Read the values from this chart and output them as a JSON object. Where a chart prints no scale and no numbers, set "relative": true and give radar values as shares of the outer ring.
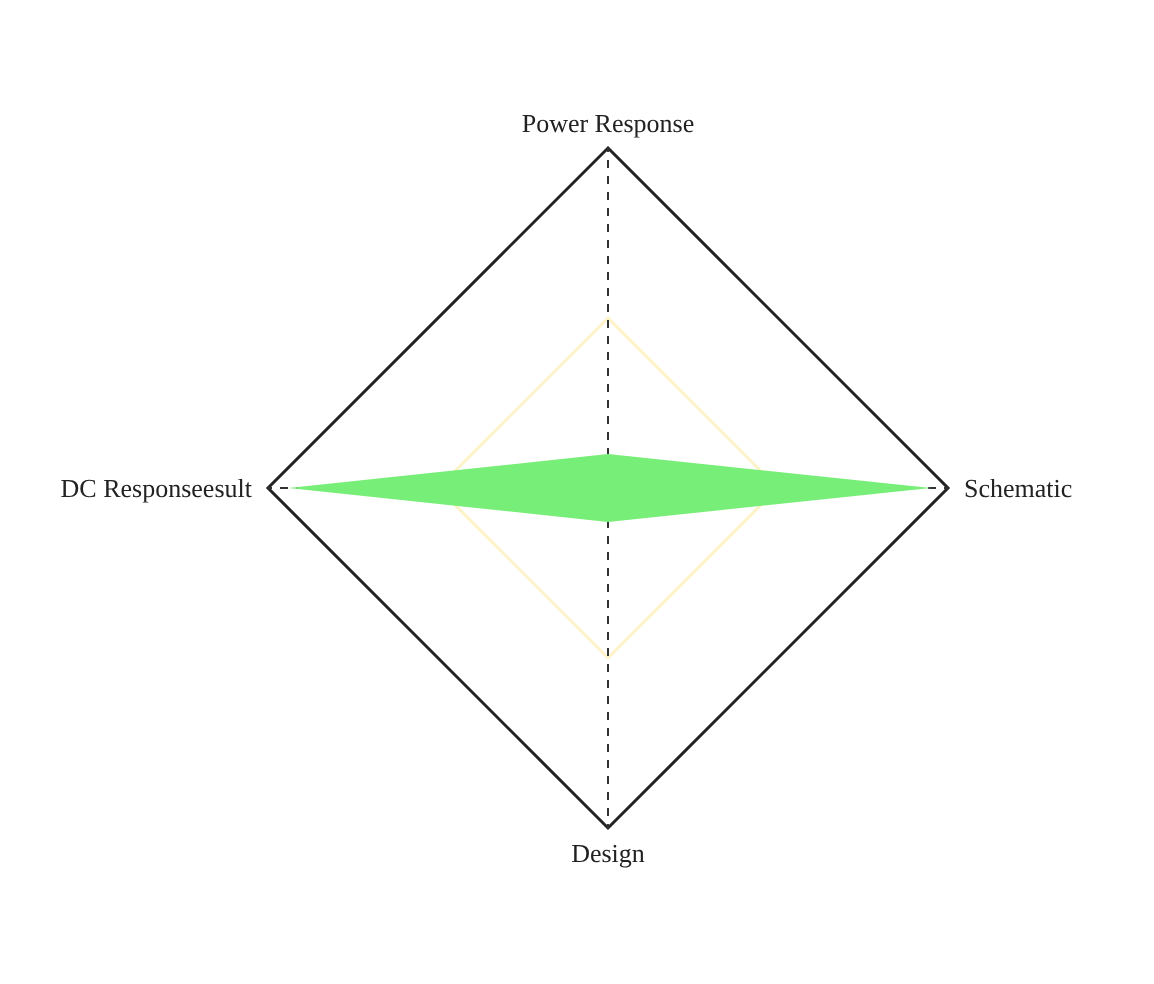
{
  "chart_data": {
    "type": "radar",
    "relative": true,
    "grid": true,
    "categories": [
      "Power Response",
      "Schematic",
      "Design",
      "DC Responseesult"
    ],
    "series": [
      {
        "color": "#77ee77",
        "values": [
          0.1,
          0.95,
          0.1,
          0.94
        ]
      }
    ]
  }
}
